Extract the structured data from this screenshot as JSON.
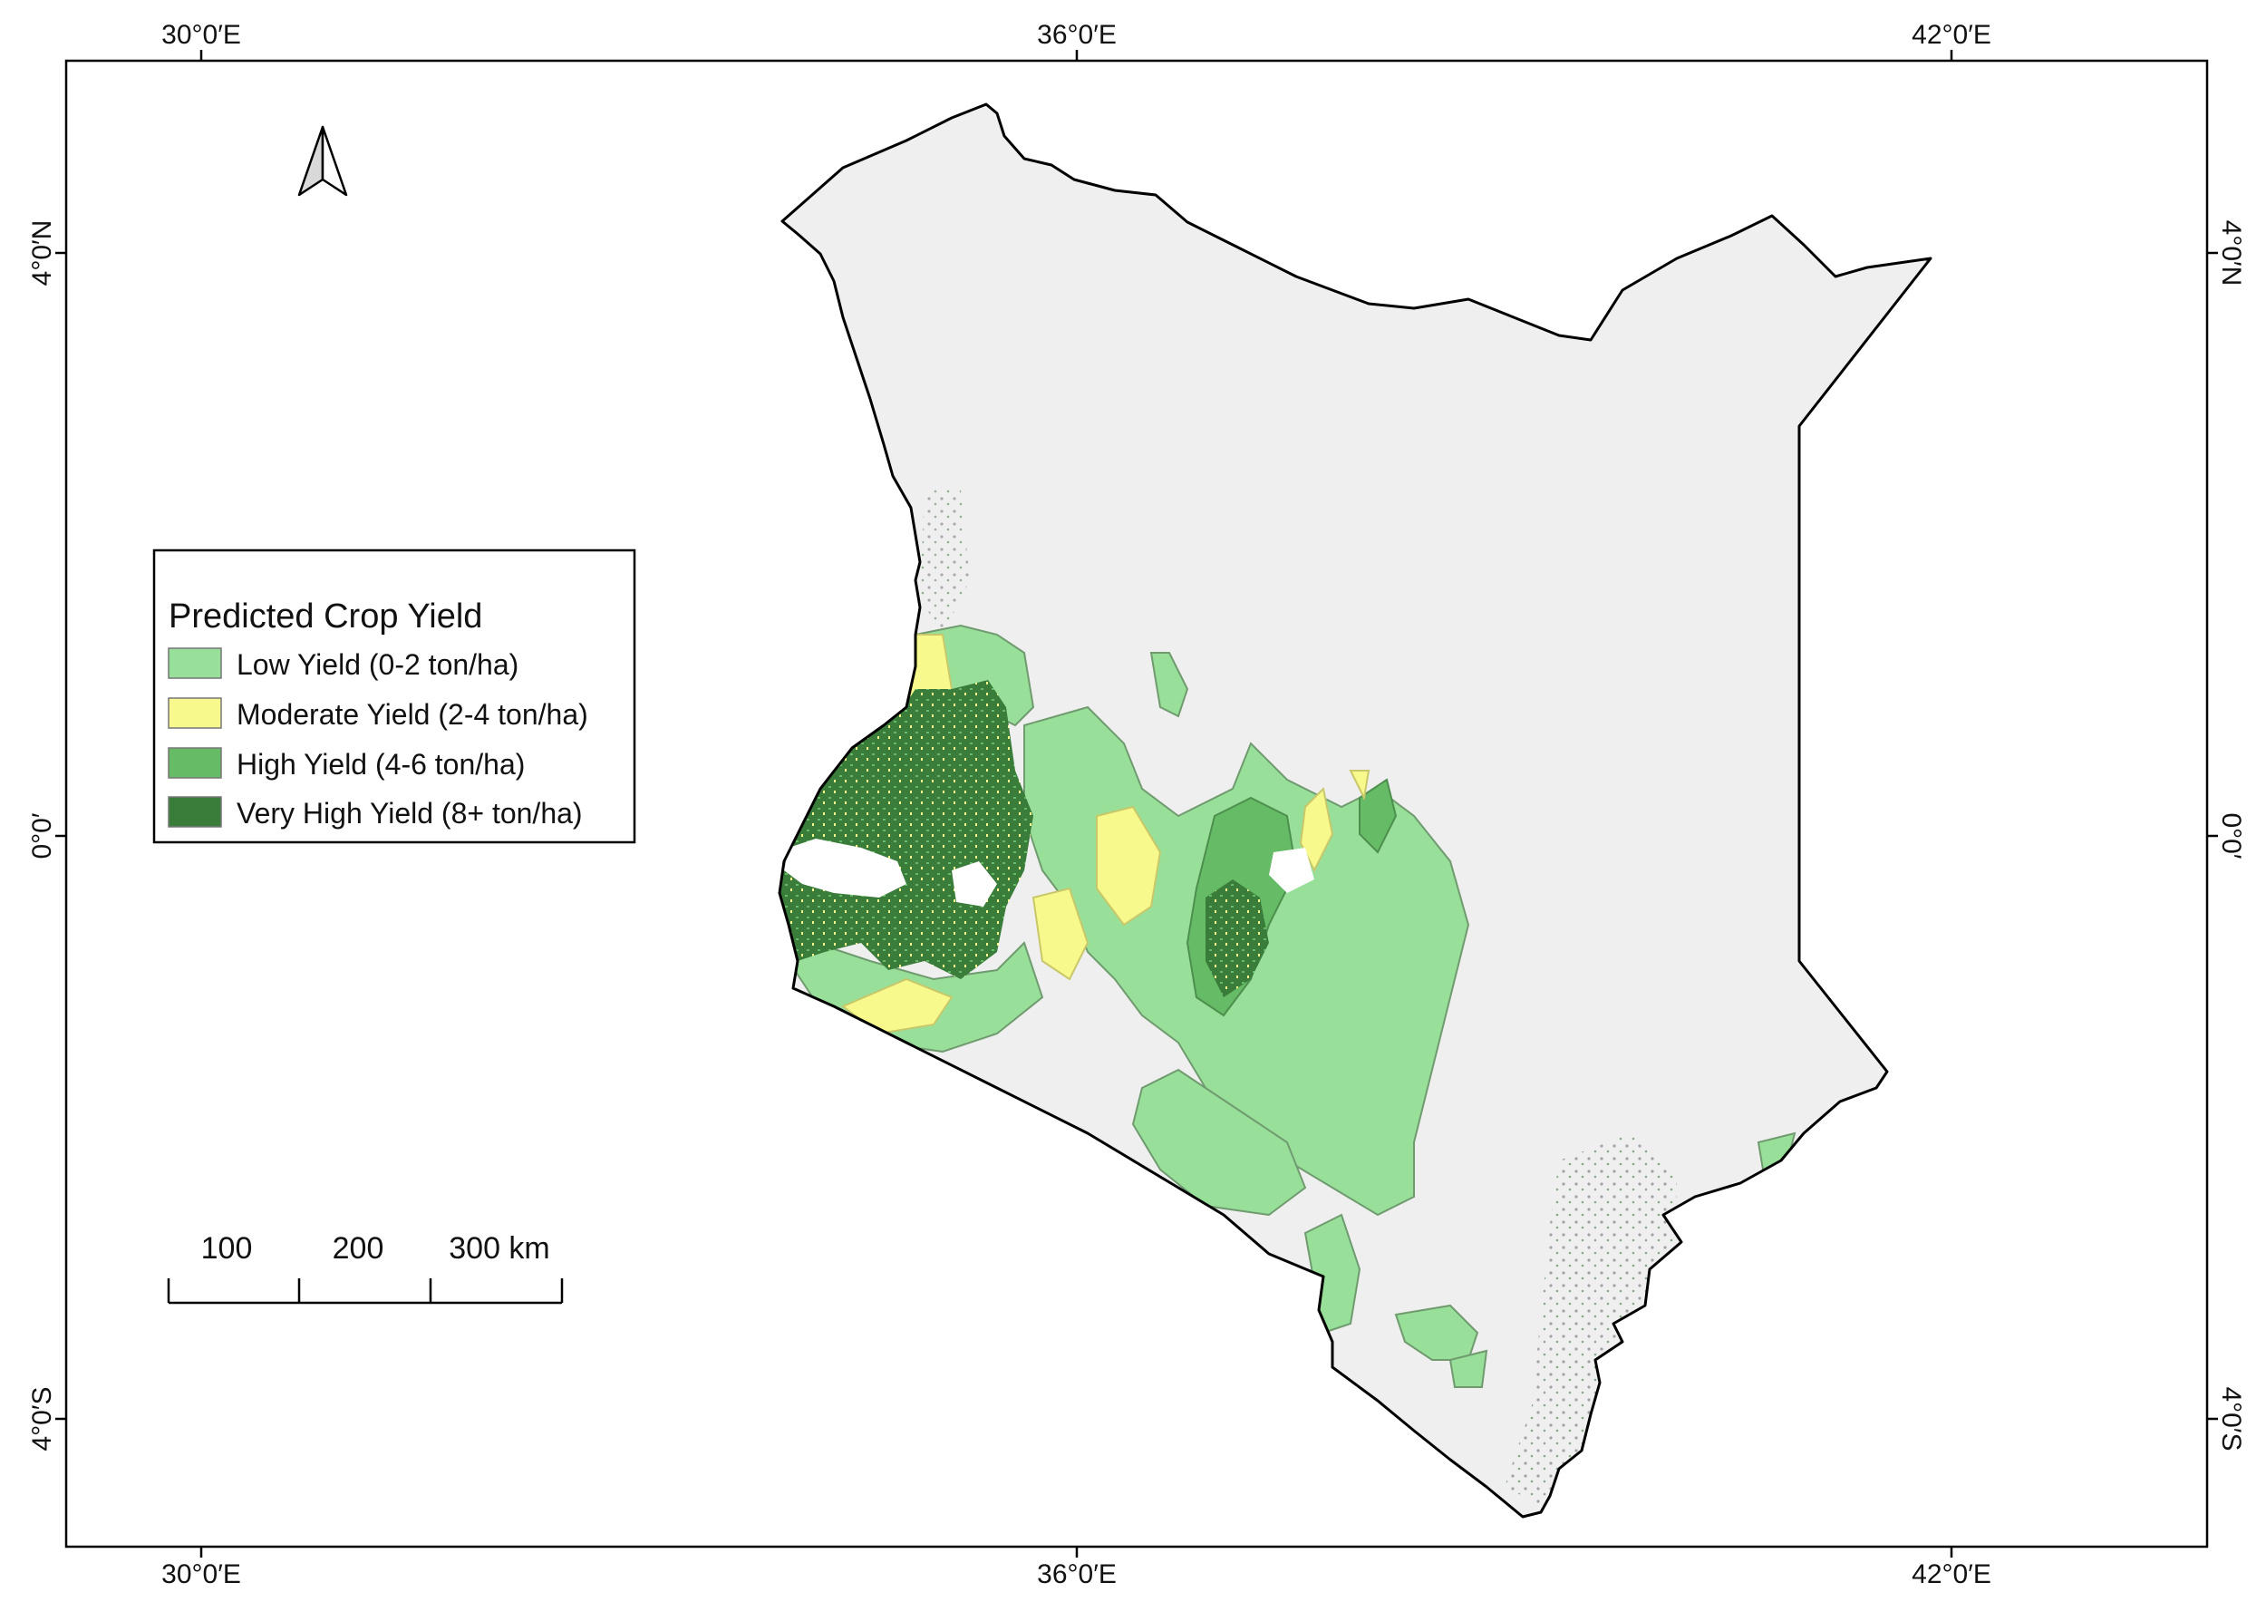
{
  "map": {
    "legend": {
      "title": "Predicted Crop Yield",
      "items": [
        {
          "label": "Low Yield (0-2 ton/ha)",
          "color": "#98df9a"
        },
        {
          "label": "Moderate Yield (2-4 ton/ha)",
          "color": "#f7f98c"
        },
        {
          "label": "High Yield (4-6 ton/ha)",
          "color": "#66bb66"
        },
        {
          "label": "Very High Yield (8+ ton/ha)",
          "color": "#3a7d3a"
        }
      ]
    },
    "graticule": {
      "top": [
        "30°0′E",
        "36°0′E",
        "42°0′E"
      ],
      "bottom": [
        "30°0′E",
        "36°0′E",
        "42°0′E"
      ],
      "left": [
        "4°0′N",
        "0°0′",
        "4°0′S"
      ],
      "right": [
        "4°0′N",
        "0°0′",
        "4°0′S"
      ]
    },
    "scale_bar": {
      "labels": [
        "100",
        "200",
        "300 km"
      ]
    },
    "colors": {
      "country_fill": "#efefef",
      "border": "#000000",
      "sparse_dots": "#a8a8a8"
    },
    "icons": {
      "north_arrow": "north-arrow-icon"
    }
  }
}
